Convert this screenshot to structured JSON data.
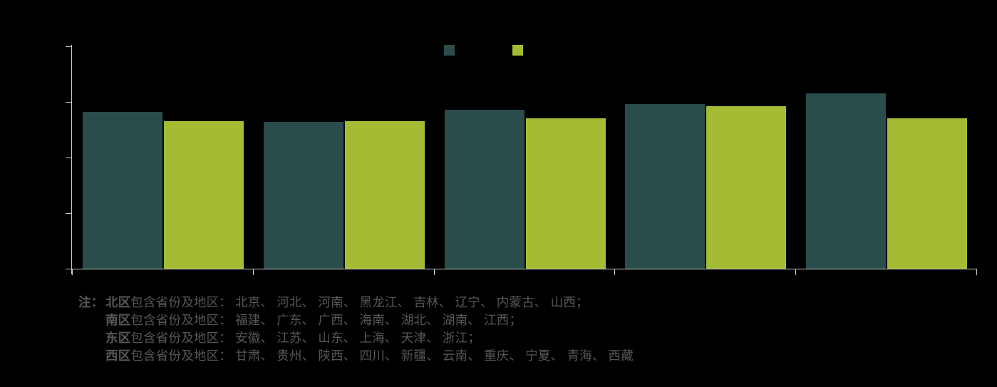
{
  "chart_data": {
    "type": "bar",
    "title": "",
    "categories": [
      "",
      "",
      "",
      "",
      ""
    ],
    "series": [
      {
        "name": "",
        "color": "#2A4C4B",
        "values": [
          2.82,
          2.64,
          2.86,
          2.96,
          3.15
        ]
      },
      {
        "name": "",
        "color": "#A4BC34",
        "values": [
          2.65,
          2.66,
          2.71,
          2.92,
          2.71
        ]
      }
    ],
    "ylim": [
      0,
      4
    ],
    "y_tick_interval": 1,
    "y_tick_count": 5,
    "x_tick_count": 6,
    "grid": false,
    "legend_position": "top-center",
    "axis_color": "#CBCBCB",
    "labels_note": "Axis tick labels, category labels, legend labels and title are rendered in black on the black background and are not visible; bar values are estimated in y-axis tick units (0-4 scale)."
  },
  "colors": {
    "background": "#000000",
    "series_dark_teal": "#2A4C4B",
    "series_yellow_green": "#A4BC34",
    "axis": "#CBCBCB",
    "note_text": "#575757"
  },
  "note": {
    "prefix": "注：",
    "lines": [
      {
        "region": "北区",
        "text": "包含省份及地区： 北京、 河北、 河南、 黑龙江、 吉林、 辽宁、 内蒙古、 山西；"
      },
      {
        "region": "南区",
        "text": "包含省份及地区： 福建、 广东、 广西、 海南、 湖北、 湖南、 江西；"
      },
      {
        "region": "东区",
        "text": "包含省份及地区： 安徽、 江苏、 山东、 上海、 天津、 浙江；"
      },
      {
        "region": "西区",
        "text": "包含省份及地区： 甘肃、 贵州、 陕西、 四川、 新疆、 云南、 重庆、 宁夏、 青海、 西藏"
      }
    ]
  }
}
